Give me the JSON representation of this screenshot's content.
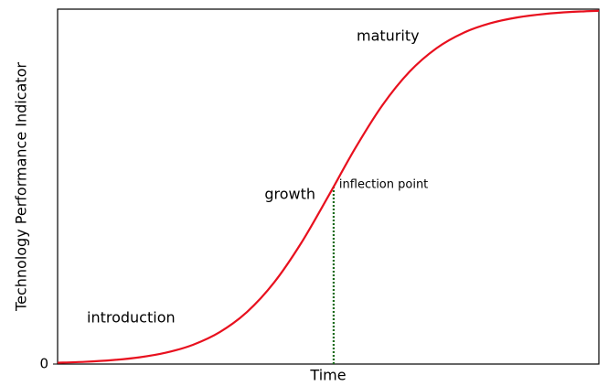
{
  "chart_data": {
    "type": "line",
    "xlabel": "Time",
    "ylabel": "Technology Performance Indicator",
    "xlim": [
      0,
      10
    ],
    "ylim": [
      0,
      1
    ],
    "xticks": [],
    "yticks": [
      0
    ],
    "x": [
      0,
      0.5,
      1,
      1.5,
      2,
      2.5,
      3,
      3.5,
      4,
      4.5,
      5,
      5.5,
      6,
      6.5,
      7,
      7.5,
      8,
      8.5,
      9,
      9.5,
      10
    ],
    "series": [
      {
        "color": "#e8101e",
        "values": [
          0.0037,
          0.0063,
          0.0109,
          0.0187,
          0.032,
          0.0542,
          0.0903,
          0.1468,
          0.2298,
          0.3408,
          0.4725,
          0.6083,
          0.7291,
          0.8235,
          0.8899,
          0.9334,
          0.9604,
          0.9768,
          0.9865,
          0.9922,
          0.9955
        ]
      }
    ],
    "annotations": [
      "introduction",
      "growth",
      "maturity"
    ],
    "inflection": {
      "label": "inflection point",
      "x": 5.1,
      "y": 0.5,
      "color": "#1a6b1a"
    }
  }
}
